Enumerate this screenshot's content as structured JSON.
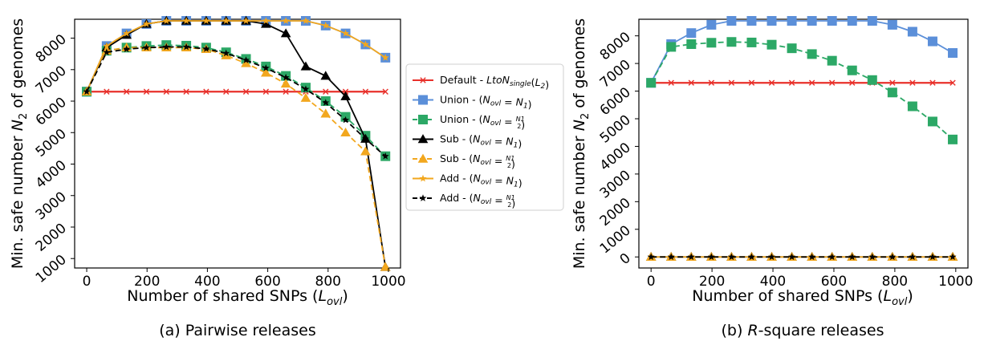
{
  "legend": {
    "entries": [
      {
        "label": "Default - LtoN",
        "sub": "single",
        "tail": "(L",
        "tail_sub": "2",
        "tail_end": ")",
        "color": "#e8302a",
        "marker": "x",
        "dash": false
      },
      {
        "label": "Union - (N",
        "sub": "ovl",
        "tail": " = N",
        "tail_sub": "1",
        "tail_end": ")",
        "color": "#5b8fd9",
        "marker": "square",
        "dash": false
      },
      {
        "label": "Union - (N",
        "sub": "ovl",
        "tail": " = N1/2",
        "tail_sub": "",
        "tail_end": ")",
        "color": "#2ca866",
        "marker": "square",
        "dash": true
      },
      {
        "label": "Sub - (N",
        "sub": "ovl",
        "tail": " = N",
        "tail_sub": "1",
        "tail_end": ")",
        "color": "#000000",
        "marker": "triangle",
        "dash": false
      },
      {
        "label": "Sub - (N",
        "sub": "ovl",
        "tail": " = N1/2",
        "tail_sub": "",
        "tail_end": ")",
        "color": "#f2a71e",
        "marker": "triangle",
        "dash": true
      },
      {
        "label": "Add - (N",
        "sub": "ovl",
        "tail": " = N",
        "tail_sub": "1",
        "tail_end": ")",
        "color": "#f2a71e",
        "marker": "star",
        "dash": false
      },
      {
        "label": "Add - (N",
        "sub": "ovl",
        "tail": " = N1/2",
        "tail_sub": "",
        "tail_end": ")",
        "color": "#000000",
        "marker": "star",
        "dash": true
      }
    ]
  },
  "chart_data": [
    {
      "type": "line",
      "caption": "(a) Pairwise releases",
      "xlabel": "Number of shared SNPs (Lovl)",
      "ylabel": "Min. safe number N2 of genomes",
      "xlim": [
        -40,
        1040
      ],
      "ylim": [
        700,
        8600
      ],
      "xticks": [
        0,
        200,
        400,
        600,
        800,
        1000
      ],
      "yticks": [
        1000,
        2000,
        3000,
        4000,
        5000,
        6000,
        7000,
        8000
      ],
      "x": [
        0,
        66,
        132,
        198,
        264,
        330,
        396,
        462,
        528,
        594,
        660,
        726,
        792,
        858,
        924,
        990
      ],
      "series": [
        {
          "name": "Default - LtoNsingle(L2)",
          "color": "#e8302a",
          "marker": "x",
          "dash": false,
          "values": [
            6300,
            6300,
            6300,
            6300,
            6300,
            6300,
            6300,
            6300,
            6300,
            6300,
            6300,
            6300,
            6300,
            6300,
            6300,
            6300
          ]
        },
        {
          "name": "Union - (Novl = N1)",
          "color": "#5b8fd9",
          "marker": "square",
          "dash": false,
          "values": [
            6300,
            7750,
            8150,
            8450,
            8700,
            8850,
            8950,
            9000,
            9000,
            8950,
            8850,
            8650,
            8400,
            8150,
            7800,
            7380
          ]
        },
        {
          "name": "Union - (Novl = N1/2)",
          "color": "#2ca866",
          "marker": "square",
          "dash": true,
          "values": [
            6300,
            7600,
            7700,
            7750,
            7780,
            7760,
            7700,
            7550,
            7340,
            7100,
            6800,
            6430,
            6000,
            5500,
            4900,
            4250
          ]
        },
        {
          "name": "Sub - (Novl = N1)",
          "color": "#000000",
          "marker": "triangle",
          "dash": false,
          "values": [
            6300,
            7700,
            8100,
            8450,
            8650,
            8800,
            8850,
            8800,
            8650,
            8450,
            8150,
            7100,
            6800,
            6150,
            4800,
            730
          ]
        },
        {
          "name": "Sub - (Novl = N1/2)",
          "color": "#f2a71e",
          "marker": "triangle",
          "dash": true,
          "values": [
            6300,
            7600,
            7700,
            7700,
            7700,
            7700,
            7650,
            7450,
            7200,
            6900,
            6550,
            6100,
            5600,
            5000,
            4400,
            730
          ]
        },
        {
          "name": "Add - (Novl = N1)",
          "color": "#f2a71e",
          "marker": "star",
          "dash": false,
          "values": [
            6300,
            7750,
            8150,
            8450,
            8700,
            8850,
            8950,
            9000,
            9000,
            8950,
            8850,
            8650,
            8400,
            8150,
            7800,
            7380
          ]
        },
        {
          "name": "Add - (Novl = N1/2)",
          "color": "#000000",
          "marker": "star",
          "dash": true,
          "values": [
            6300,
            7550,
            7650,
            7700,
            7720,
            7720,
            7660,
            7520,
            7300,
            7050,
            6750,
            6380,
            5950,
            5400,
            4800,
            4250
          ]
        }
      ]
    },
    {
      "type": "line",
      "caption": "(b) R-square releases",
      "xlabel": "Number of shared SNPs (Lovl)",
      "ylabel": "Min. safe number N2 of genomes",
      "xlim": [
        -40,
        1040
      ],
      "ylim": [
        -400,
        8600
      ],
      "xticks": [
        0,
        200,
        400,
        600,
        800,
        1000
      ],
      "yticks": [
        0,
        1000,
        2000,
        3000,
        4000,
        5000,
        6000,
        7000,
        8000
      ],
      "x": [
        0,
        66,
        132,
        198,
        264,
        330,
        396,
        462,
        528,
        594,
        660,
        726,
        792,
        858,
        924,
        990
      ],
      "series": [
        {
          "name": "Default - LtoNsingle(L2)",
          "color": "#e8302a",
          "marker": "x",
          "dash": false,
          "values": [
            6300,
            6300,
            6300,
            6300,
            6300,
            6300,
            6300,
            6300,
            6300,
            6300,
            6300,
            6300,
            6300,
            6300,
            6300,
            6300
          ]
        },
        {
          "name": "Union - (Novl = N1)",
          "color": "#5b8fd9",
          "marker": "square",
          "dash": false,
          "values": [
            6300,
            7700,
            8100,
            8400,
            8700,
            8850,
            8950,
            9000,
            9000,
            8950,
            8850,
            8650,
            8400,
            8150,
            7800,
            7380
          ]
        },
        {
          "name": "Union - (Novl = N1/2)",
          "color": "#2ca866",
          "marker": "square",
          "dash": true,
          "values": [
            6300,
            7600,
            7700,
            7750,
            7780,
            7760,
            7680,
            7550,
            7340,
            7100,
            6750,
            6400,
            5950,
            5450,
            4900,
            4250
          ]
        },
        {
          "name": "Sub - (Novl = N1)",
          "color": "#000000",
          "marker": "triangle",
          "dash": false,
          "values": [
            0,
            0,
            0,
            0,
            0,
            0,
            0,
            0,
            0,
            0,
            0,
            0,
            0,
            0,
            0,
            0
          ]
        },
        {
          "name": "Sub - (Novl = N1/2)",
          "color": "#f2a71e",
          "marker": "triangle",
          "dash": true,
          "values": [
            0,
            0,
            0,
            0,
            0,
            0,
            0,
            0,
            0,
            0,
            0,
            0,
            0,
            0,
            0,
            0
          ]
        },
        {
          "name": "Add - (Novl = N1)",
          "color": "#f2a71e",
          "marker": "star",
          "dash": false,
          "values": [
            0,
            0,
            0,
            0,
            0,
            0,
            0,
            0,
            0,
            0,
            0,
            0,
            0,
            0,
            0,
            0
          ]
        },
        {
          "name": "Add - (Novl = N1/2)",
          "color": "#000000",
          "marker": "star",
          "dash": true,
          "values": [
            0,
            0,
            0,
            0,
            0,
            0,
            0,
            0,
            0,
            0,
            0,
            0,
            0,
            0,
            0,
            0
          ]
        }
      ]
    }
  ]
}
